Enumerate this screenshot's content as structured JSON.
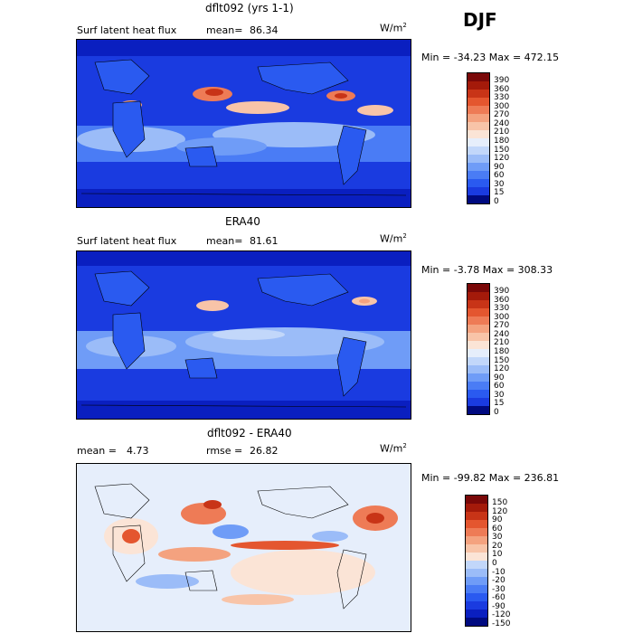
{
  "season": "DJF",
  "legend_colors": [
    "#000a80",
    "#0a1fc0",
    "#1a3be0",
    "#2a5af0",
    "#4a7cf5",
    "#6f9cf7",
    "#9bbcf8",
    "#c2d7fa",
    "#e6eefb",
    "#fbe4d6",
    "#f8c4a8",
    "#f4a27f",
    "#ee7b56",
    "#e4562f",
    "#c83417",
    "#a41a0a",
    "#7a0808"
  ],
  "chart_data": [
    {
      "type": "heatmap",
      "title": "dflt092 (yrs 1-1)",
      "variable": "Surf latent heat flux",
      "mean_label": "mean=",
      "mean": "86.34",
      "units_label": "W/m",
      "units_exp": "2",
      "min_label": "Min =",
      "min": "-34.23",
      "max_label": "Max =",
      "max": "472.15",
      "colorbar_ticks": [
        "390",
        "360",
        "330",
        "300",
        "270",
        "240",
        "210",
        "180",
        "150",
        "120",
        "90",
        "60",
        "30",
        "15",
        "0"
      ],
      "color_indices": [
        16,
        15,
        14,
        13,
        12,
        11,
        10,
        9,
        8,
        7,
        6,
        5,
        4,
        3,
        2,
        0
      ]
    },
    {
      "type": "heatmap",
      "title": "ERA40",
      "variable": "Surf latent heat flux",
      "mean_label": "mean=",
      "mean": "81.61",
      "units_label": "W/m",
      "units_exp": "2",
      "min_label": "Min =",
      "min": "-3.78",
      "max_label": "Max =",
      "max": "308.33",
      "colorbar_ticks": [
        "390",
        "360",
        "330",
        "300",
        "270",
        "240",
        "210",
        "180",
        "150",
        "120",
        "90",
        "60",
        "30",
        "15",
        "0"
      ],
      "color_indices": [
        16,
        15,
        14,
        13,
        12,
        11,
        10,
        9,
        8,
        7,
        6,
        5,
        4,
        3,
        2,
        0
      ]
    },
    {
      "type": "heatmap",
      "title": "dflt092 - ERA40",
      "mean_label": "mean =",
      "mean": "4.73",
      "rmse_label": "rmse =",
      "rmse": "26.82",
      "units_label": "W/m",
      "units_exp": "2",
      "min_label": "Min =",
      "min": "-99.82",
      "max_label": "Max =",
      "max": "236.81",
      "colorbar_ticks": [
        "150",
        "120",
        "90",
        "60",
        "30",
        "20",
        "10",
        "0",
        "-10",
        "-20",
        "-30",
        "-60",
        "-90",
        "-120",
        "-150"
      ],
      "color_indices": [
        16,
        15,
        14,
        13,
        12,
        11,
        10,
        9,
        7,
        6,
        5,
        4,
        3,
        2,
        1,
        0
      ]
    }
  ]
}
